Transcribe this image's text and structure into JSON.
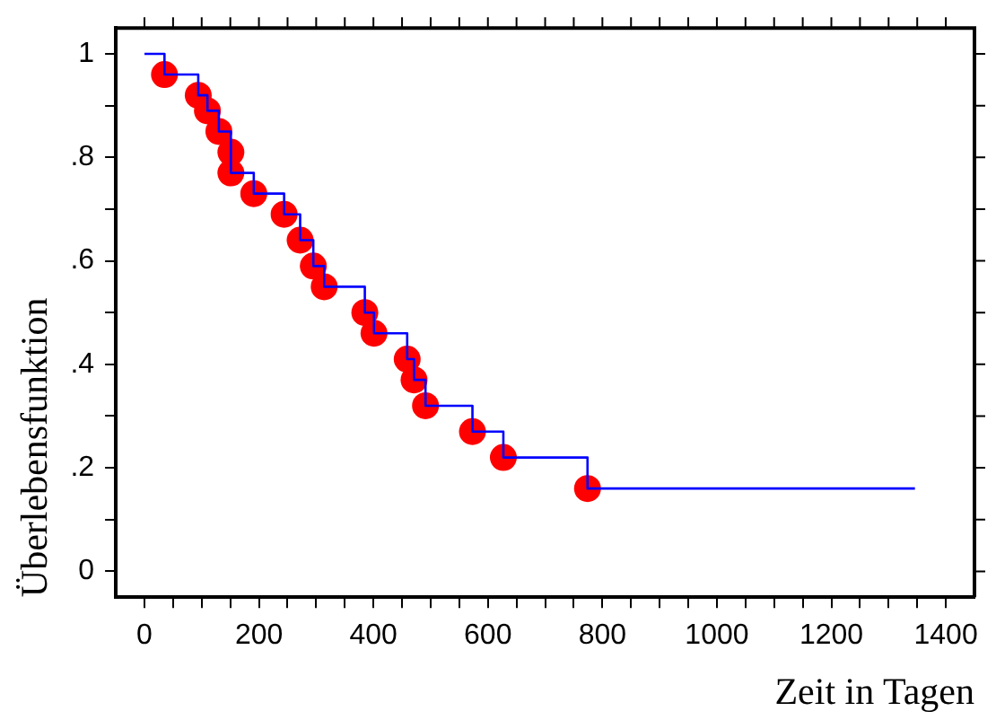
{
  "chart_data": {
    "type": "step",
    "xlabel": "Zeit in Tagen",
    "ylabel": "Überlebensfunktion",
    "xlim": [
      -50,
      1450
    ],
    "ylim": [
      -0.05,
      1.05
    ],
    "xticks": [
      0,
      {
        "value": 50,
        "label": null
      },
      200,
      {
        "value": 100,
        "label": null
      },
      {
        "value": 150,
        "label": null
      },
      {
        "value": 250,
        "label": null
      },
      {
        "value": 300,
        "label": null
      },
      {
        "value": 350,
        "label": null
      },
      400,
      {
        "value": 450,
        "label": null
      },
      {
        "value": 500,
        "label": null
      },
      {
        "value": 550,
        "label": null
      },
      600,
      {
        "value": 650,
        "label": null
      },
      {
        "value": 700,
        "label": null
      },
      {
        "value": 750,
        "label": null
      },
      800,
      {
        "value": 850,
        "label": null
      },
      {
        "value": 900,
        "label": null
      },
      {
        "value": 950,
        "label": null
      },
      1000,
      {
        "value": 1050,
        "label": null
      },
      {
        "value": 1100,
        "label": null
      },
      {
        "value": 1150,
        "label": null
      },
      1200,
      {
        "value": 1250,
        "label": null
      },
      {
        "value": 1300,
        "label": null
      },
      {
        "value": 1350,
        "label": null
      },
      1400
    ],
    "yticks": [
      0,
      {
        "value": 0.1,
        "label": null
      },
      {
        "value": 0.2,
        "label": ".2"
      },
      {
        "value": 0.3,
        "label": null
      },
      {
        "value": 0.4,
        "label": ".4"
      },
      {
        "value": 0.5,
        "label": null
      },
      {
        "value": 0.6,
        "label": ".6"
      },
      {
        "value": 0.7,
        "label": null
      },
      {
        "value": 0.8,
        "label": ".8"
      },
      {
        "value": 0.9,
        "label": null
      },
      1
    ],
    "grid": false,
    "legend": false,
    "series": [
      {
        "color": "#0000ff",
        "marker": "none",
        "x": [
          0,
          35,
          94,
          110,
          130,
          151,
          151,
          191,
          244,
          272,
          295,
          314,
          385,
          401,
          459,
          471,
          491,
          573,
          627,
          774,
          1346
        ],
        "values": [
          1,
          0.96,
          0.92,
          0.89,
          0.85,
          0.81,
          0.77,
          0.73,
          0.69,
          0.64,
          0.59,
          0.55,
          0.5,
          0.46,
          0.41,
          0.37,
          0.32,
          0.27,
          0.22,
          0.16,
          0.16
        ]
      },
      {
        "type": "scatter",
        "color": "#ff0000",
        "marker": "circle",
        "x": [
          35,
          94,
          110,
          130,
          151,
          151,
          191,
          244,
          272,
          295,
          314,
          385,
          401,
          459,
          471,
          491,
          573,
          627,
          774
        ],
        "values": [
          0.96,
          0.92,
          0.89,
          0.85,
          0.81,
          0.77,
          0.73,
          0.69,
          0.64,
          0.59,
          0.55,
          0.5,
          0.46,
          0.41,
          0.37,
          0.32,
          0.27,
          0.22,
          0.16
        ]
      }
    ]
  }
}
